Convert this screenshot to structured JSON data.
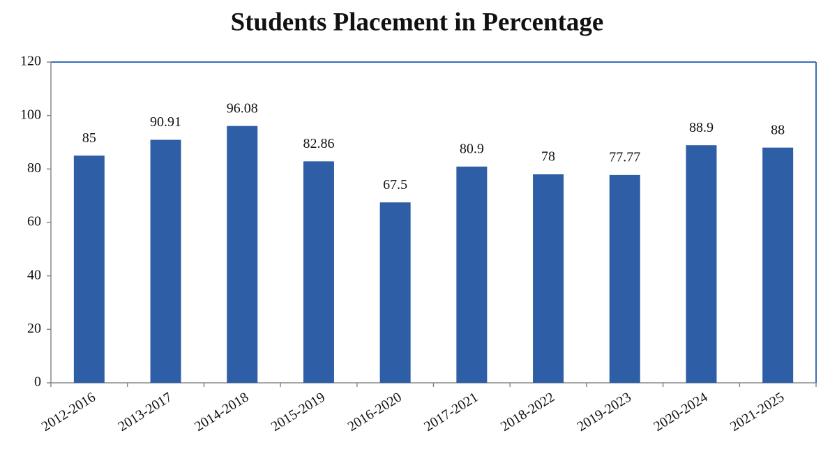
{
  "chart_data": {
    "type": "bar",
    "title": "Students Placement in Percentage",
    "categories": [
      "2012-2016",
      "2013-2017",
      "2014-2018",
      "2015-2019",
      "2016-2020",
      "2017-2021",
      "2018-2022",
      "2019-2023",
      "2020-2024",
      "2021-2025"
    ],
    "values": [
      85,
      90.91,
      96.08,
      82.86,
      67.5,
      80.9,
      78,
      77.77,
      88.9,
      88
    ],
    "color": "#2e5ea6",
    "ylim": [
      0,
      120
    ],
    "yticks": [
      0,
      20,
      40,
      60,
      80,
      100,
      120
    ],
    "grid": false
  }
}
